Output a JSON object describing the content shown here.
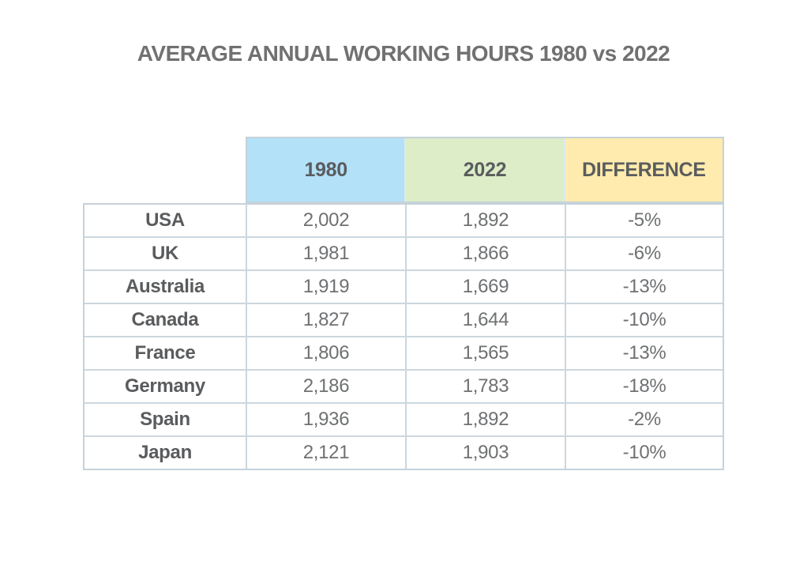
{
  "title": "AVERAGE ANNUAL WORKING HOURS 1980 vs 2022",
  "colors": {
    "col_1980_bg": "#b3e1f8",
    "col_2022_bg": "#dcedc8",
    "col_diff_bg": "#ffebad",
    "border": "#c6d2da",
    "title_text": "#717171",
    "header_text": "#5a5c5e",
    "body_text": "#6e7072"
  },
  "table": {
    "columns": [
      "",
      "1980",
      "2022",
      "DIFFERENCE"
    ],
    "rows": [
      {
        "country": "USA",
        "v1980": "2,002",
        "v2022": "1,892",
        "diff": "-5%"
      },
      {
        "country": "UK",
        "v1980": "1,981",
        "v2022": "1,866",
        "diff": "-6%"
      },
      {
        "country": "Australia",
        "v1980": "1,919",
        "v2022": "1,669",
        "diff": "-13%"
      },
      {
        "country": "Canada",
        "v1980": "1,827",
        "v2022": "1,644",
        "diff": "-10%"
      },
      {
        "country": "France",
        "v1980": "1,806",
        "v2022": "1,565",
        "diff": "-13%"
      },
      {
        "country": "Germany",
        "v1980": "2,186",
        "v2022": "1,783",
        "diff": "-18%"
      },
      {
        "country": "Spain",
        "v1980": "1,936",
        "v2022": "1,892",
        "diff": "-2%"
      },
      {
        "country": "Japan",
        "v1980": "2,121",
        "v2022": "1,903",
        "diff": "-10%"
      }
    ]
  },
  "chart_data": {
    "type": "table",
    "title": "AVERAGE ANNUAL WORKING HOURS 1980 vs 2022",
    "categories": [
      "USA",
      "UK",
      "Australia",
      "Canada",
      "France",
      "Germany",
      "Spain",
      "Japan"
    ],
    "series": [
      {
        "name": "1980",
        "values": [
          2002,
          1981,
          1919,
          1827,
          1806,
          2186,
          1936,
          2121
        ]
      },
      {
        "name": "2022",
        "values": [
          1892,
          1866,
          1669,
          1644,
          1565,
          1783,
          1892,
          1903
        ]
      },
      {
        "name": "DIFFERENCE",
        "values": [
          "-5%",
          "-6%",
          "-13%",
          "-10%",
          "-13%",
          "-18%",
          "-2%",
          "-10%"
        ]
      }
    ]
  }
}
